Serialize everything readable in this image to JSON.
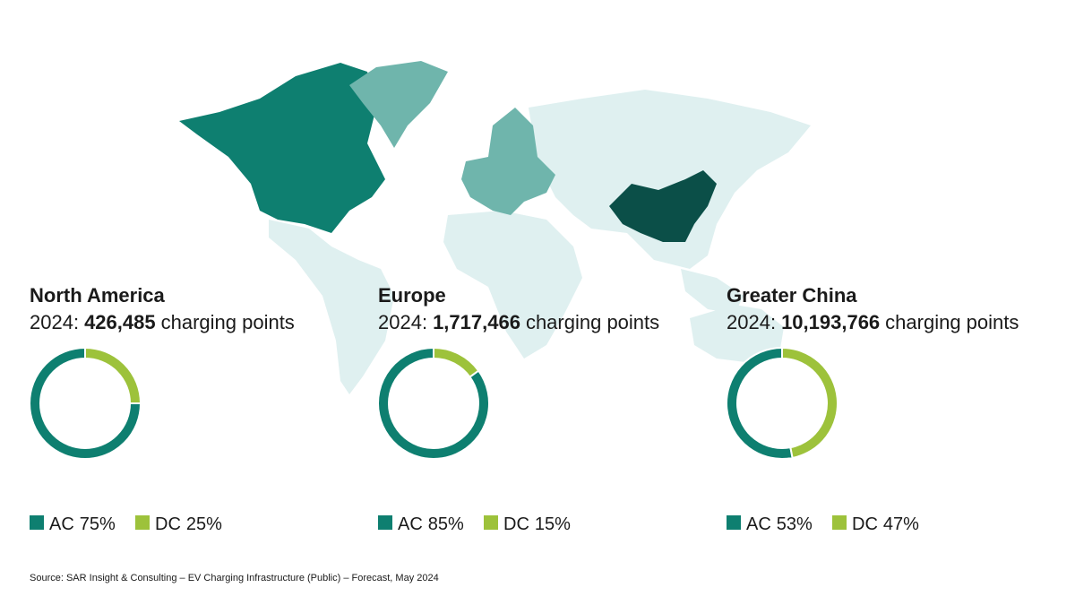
{
  "chart_data": [
    {
      "type": "donut",
      "title": "North America",
      "subtitle_prefix": "2024:",
      "total": 426485,
      "total_label": "426,485",
      "subtitle_suffix": "charging points",
      "categories": [
        "AC",
        "DC"
      ],
      "values": [
        75,
        25
      ],
      "value_labels": [
        "75%",
        "25%"
      ],
      "colors": [
        "#0e7f70",
        "#9dc23b"
      ]
    },
    {
      "type": "donut",
      "title": "Europe",
      "subtitle_prefix": "2024:",
      "total": 1717466,
      "total_label": "1,717,466",
      "subtitle_suffix": "charging points",
      "categories": [
        "AC",
        "DC"
      ],
      "values": [
        85,
        15
      ],
      "value_labels": [
        "85%",
        "15%"
      ],
      "colors": [
        "#0e7f70",
        "#9dc23b"
      ]
    },
    {
      "type": "donut",
      "title": "Greater China",
      "subtitle_prefix": "2024:",
      "total": 10193766,
      "total_label": "10,193,766",
      "subtitle_suffix": "charging points",
      "categories": [
        "AC",
        "DC"
      ],
      "values": [
        53,
        47
      ],
      "value_labels": [
        "53%",
        "47%"
      ],
      "colors": [
        "#0e7f70",
        "#9dc23b"
      ]
    }
  ],
  "source": "Source: SAR Insight & Consulting – EV Charging Infrastructure (Public) – Forecast, May 2024"
}
